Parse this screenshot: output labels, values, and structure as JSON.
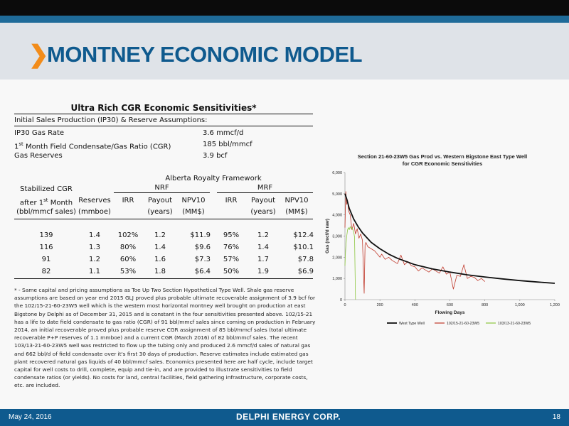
{
  "header": {
    "title": "MONTNEY ECONOMIC MODEL"
  },
  "table": {
    "title": "Ultra Rich CGR Economic Sensitivities*",
    "assumptions_heading": "Initial Sales Production (IP30) & Reserve Assumptions:",
    "assumptions": [
      {
        "label": "IP30 Gas Rate",
        "value": "3.6 mmcf/d"
      },
      {
        "label_pre": "1",
        "label_sup": "st",
        "label_post": " Month Field Condensate/Gas Ratio (CGR)",
        "value": "185 bbl/mmcf"
      },
      {
        "label": "Gas Reserves",
        "value": "3.9 bcf"
      }
    ],
    "framework": "Alberta Royalty Framework",
    "group_nrf": "NRF",
    "group_mrf": "MRF",
    "col_cgr": [
      "Stabilized CGR",
      "after 1",
      "st",
      " Month",
      "(bbl/mmcf sales)"
    ],
    "col_reserves": [
      "Reserves",
      "(mmboe)"
    ],
    "col_irr": "IRR",
    "col_payout": [
      "Payout",
      "(years)"
    ],
    "col_npv": [
      "NPV10",
      "(MM$)"
    ],
    "rows": [
      {
        "cgr": "139",
        "reserves": "1.4",
        "nrf_irr": "102%",
        "nrf_payout": "1.2",
        "nrf_npv": "$11.9",
        "mrf_irr": "95%",
        "mrf_payout": "1.2",
        "mrf_npv": "$12.4"
      },
      {
        "cgr": "116",
        "reserves": "1.3",
        "nrf_irr": "80%",
        "nrf_payout": "1.4",
        "nrf_npv": "$9.6",
        "mrf_irr": "76%",
        "mrf_payout": "1.4",
        "mrf_npv": "$10.1"
      },
      {
        "cgr": "91",
        "reserves": "1.2",
        "nrf_irr": "60%",
        "nrf_payout": "1.6",
        "nrf_npv": "$7.3",
        "mrf_irr": "57%",
        "mrf_payout": "1.7",
        "mrf_npv": "$7.8"
      },
      {
        "cgr": "82",
        "reserves": "1.1",
        "nrf_irr": "53%",
        "nrf_payout": "1.8",
        "nrf_npv": "$6.4",
        "mrf_irr": "50%",
        "mrf_payout": "1.9",
        "mrf_npv": "$6.9"
      }
    ]
  },
  "footnote": "* - Same capital and pricing assumptions as Toe Up Two Section Hypothetical Type Well. Shale gas reserve assumptions are based on year end 2015 GLJ proved plus probable ultimate recoverable assignment of 3.9 bcf for the 102/15-21-60-23W5 well which is the western most horizontal montney well brought on production at east Bigstone by Delphi as of December 31, 2015 and is constant in the four sensitivities presented above. 102/15-21 has a life to date field condensate to gas ratio (CGR) of 91 bbl/mmcf sales since coming on production in February 2014, an initial recoverable proved plus probable reserve CGR assignment of 85 bbl/mmcf sales (total ultimate recoverable P+P reserves of 1.1 mmboe) and a current CGR (March 2016) of 82 bbl/mmcf sales. The recent 103/13-21-60-23W5 well was restricted to flow up the tubing only and produced 2.6 mmcf/d sales of natural gas and 662 bbl/d of field condensate over it's first 30 days of production. Reserve estimates include estimated gas plant recovered natural gas liquids of 40 bbl/mmcf sales. Economics presented here are half cycle, include target capital for well costs to drill, complete, equip and tie-in, and are provided to illustrate sensitivities to field condensate ratios (or yields). No costs for land, central facilities, field gathering infrastructure, corporate costs, etc. are included.",
  "chart_data": {
    "type": "line",
    "title": [
      "Section 21-60-23W5 Gas Prod vs. Western Bigstone East Type Well",
      "for CGR Economic Sensitivities"
    ],
    "xlabel": "Flowing Days",
    "ylabel": "Gas (mcf/d raw)",
    "xlim": [
      0,
      1200
    ],
    "ylim": [
      0,
      6000
    ],
    "xticks": [
      "0",
      "200",
      "400",
      "600",
      "800",
      "1,000",
      "1,200"
    ],
    "yticks": [
      "0",
      "1,000",
      "2,000",
      "3,000",
      "4,000",
      "5,000",
      "6,000"
    ],
    "legend_position": "bottom",
    "series": [
      {
        "name": "West Type Well",
        "color": "#111111",
        "x": [
          0,
          10,
          25,
          50,
          75,
          100,
          150,
          200,
          250,
          300,
          400,
          500,
          600,
          700,
          800,
          900,
          1000,
          1100,
          1200
        ],
        "y": [
          5000,
          4750,
          4300,
          3800,
          3450,
          3150,
          2700,
          2400,
          2150,
          1950,
          1650,
          1450,
          1300,
          1170,
          1070,
          980,
          900,
          830,
          770
        ]
      },
      {
        "name": "102/15-21-60-23W5",
        "color": "#c0392b",
        "x": [
          0,
          5,
          10,
          15,
          20,
          30,
          40,
          50,
          60,
          70,
          80,
          90,
          100,
          110,
          115,
          120,
          130,
          150,
          170,
          190,
          200,
          210,
          230,
          250,
          270,
          290,
          300,
          320,
          340,
          360,
          380,
          400,
          420,
          440,
          460,
          480,
          500,
          520,
          540,
          560,
          580,
          600,
          620,
          640,
          660,
          680,
          700,
          720,
          740,
          760,
          780,
          800
        ],
        "y": [
          3400,
          5100,
          4500,
          4700,
          4200,
          4000,
          3300,
          3600,
          3100,
          3350,
          2900,
          3100,
          2800,
          300,
          2600,
          2700,
          2500,
          2400,
          2300,
          2100,
          2000,
          2150,
          1900,
          2000,
          1850,
          1750,
          1700,
          2100,
          1650,
          1800,
          1600,
          1550,
          1350,
          1500,
          1400,
          1300,
          1450,
          1350,
          1250,
          1550,
          1200,
          1300,
          500,
          1150,
          1100,
          1650,
          1000,
          1100,
          1050,
          900,
          1000,
          850
        ]
      },
      {
        "name": "103/13-21-60-23W5",
        "color": "#8cc63f",
        "x": [
          0,
          3,
          6,
          10,
          15,
          20,
          25,
          30,
          35,
          40,
          45,
          50,
          55,
          60
        ],
        "y": [
          1600,
          2200,
          2600,
          3000,
          3300,
          3400,
          3300,
          3450,
          3350,
          3400,
          3300,
          3200,
          2950,
          0
        ]
      }
    ]
  },
  "footer": {
    "date": "May 24, 2016",
    "brand": "DELPHI ENERGY CORP.",
    "page": "18"
  }
}
